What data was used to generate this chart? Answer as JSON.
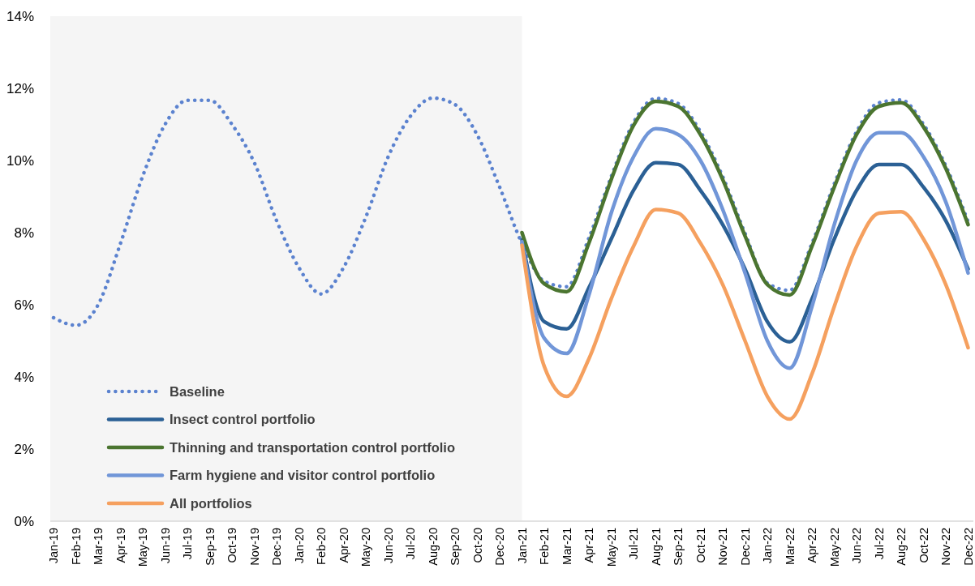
{
  "chart_data": {
    "type": "line",
    "categories": [
      "Jan-19",
      "Feb-19",
      "Mar-19",
      "Apr-19",
      "May-19",
      "Jun-19",
      "Jul-19",
      "Sep-19",
      "Oct-19",
      "Nov-19",
      "Dec-19",
      "Jan-20",
      "Feb-20",
      "Apr-20",
      "May-20",
      "Jun-20",
      "Jul-20",
      "Aug-20",
      "Sep-20",
      "Oct-20",
      "Dec-20",
      "Jan-21",
      "Feb-21",
      "Mar-21",
      "Apr-21",
      "May-21",
      "Jul-21",
      "Aug-21",
      "Sep-21",
      "Oct-21",
      "Nov-21",
      "Dec-21",
      "Jan-22",
      "Mar-22",
      "Apr-22",
      "May-22",
      "Jun-22",
      "Jul-22",
      "Aug-22",
      "Oct-22",
      "Nov-22",
      "Dec-22"
    ],
    "ylim": [
      0,
      14
    ],
    "yticks": [
      {
        "value": 0,
        "label": "0%"
      },
      {
        "value": 2,
        "label": "2%"
      },
      {
        "value": 4,
        "label": "4%"
      },
      {
        "value": 6,
        "label": "6%"
      },
      {
        "value": 8,
        "label": "8%"
      },
      {
        "value": 10,
        "label": "10%"
      },
      {
        "value": 12,
        "label": "12%"
      },
      {
        "value": 14,
        "label": "14%"
      }
    ],
    "grid": false,
    "legend": "bottom left",
    "bands": [
      {
        "axis": "x",
        "from": "Jan-19",
        "to": "Jan-21",
        "color": "#f5f5f5"
      }
    ],
    "series": [
      {
        "name": "Baseline",
        "color": "#5b82cf",
        "line_style": "dotted",
        "values": [
          5.64,
          5.43,
          6.0,
          7.7,
          9.57,
          11.0,
          11.67,
          11.67,
          11.0,
          9.94,
          8.33,
          7.03,
          6.3,
          7.03,
          8.43,
          10.1,
          11.23,
          11.73,
          11.55,
          10.7,
          9.26,
          7.7,
          6.65,
          6.5,
          7.85,
          9.55,
          11.05,
          11.72,
          11.58,
          10.8,
          9.55,
          7.98,
          6.6,
          6.4,
          7.7,
          9.35,
          10.8,
          11.6,
          11.68,
          11.0,
          9.85,
          8.3
        ]
      },
      {
        "name": "Insect control portfolio",
        "color": "#2b6095",
        "line_style": "solid",
        "values": [
          null,
          null,
          null,
          null,
          null,
          null,
          null,
          null,
          null,
          null,
          null,
          null,
          null,
          null,
          null,
          null,
          null,
          null,
          null,
          null,
          null,
          7.8,
          5.53,
          5.33,
          6.47,
          7.82,
          9.17,
          9.94,
          9.89,
          9.17,
          8.22,
          6.99,
          5.53,
          4.97,
          6.16,
          7.82,
          9.17,
          9.89,
          9.89,
          9.26,
          8.33,
          6.99
        ]
      },
      {
        "name": "Thinning and transportation control portfolio",
        "color": "#4b7530",
        "line_style": "solid",
        "values": [
          null,
          null,
          null,
          null,
          null,
          null,
          null,
          null,
          null,
          null,
          null,
          null,
          null,
          null,
          null,
          null,
          null,
          null,
          null,
          null,
          null,
          8.0,
          6.58,
          6.36,
          7.71,
          9.47,
          10.97,
          11.64,
          11.5,
          10.72,
          9.47,
          7.91,
          6.56,
          6.27,
          7.62,
          9.26,
          10.72,
          11.5,
          11.6,
          10.93,
          9.78,
          8.22
        ]
      },
      {
        "name": "Farm hygiene and visitor control portfolio",
        "color": "#7196d8",
        "line_style": "solid",
        "values": [
          null,
          null,
          null,
          null,
          null,
          null,
          null,
          null,
          null,
          null,
          null,
          null,
          null,
          null,
          null,
          null,
          null,
          null,
          null,
          null,
          null,
          7.75,
          5.07,
          4.65,
          6.27,
          8.54,
          10.1,
          10.88,
          10.72,
          10.0,
          8.64,
          6.88,
          5.0,
          4.24,
          5.95,
          8.22,
          10.0,
          10.77,
          10.77,
          10.1,
          8.85,
          6.88
        ]
      },
      {
        "name": "All portfolios",
        "color": "#f5a05f",
        "line_style": "solid",
        "values": [
          null,
          null,
          null,
          null,
          null,
          null,
          null,
          null,
          null,
          null,
          null,
          null,
          null,
          null,
          null,
          null,
          null,
          null,
          null,
          null,
          null,
          7.65,
          4.29,
          3.46,
          4.5,
          6.16,
          7.62,
          8.64,
          8.54,
          7.71,
          6.56,
          5.0,
          3.46,
          2.83,
          4.08,
          5.95,
          7.62,
          8.54,
          8.58,
          7.82,
          6.56,
          4.81
        ]
      }
    ]
  }
}
